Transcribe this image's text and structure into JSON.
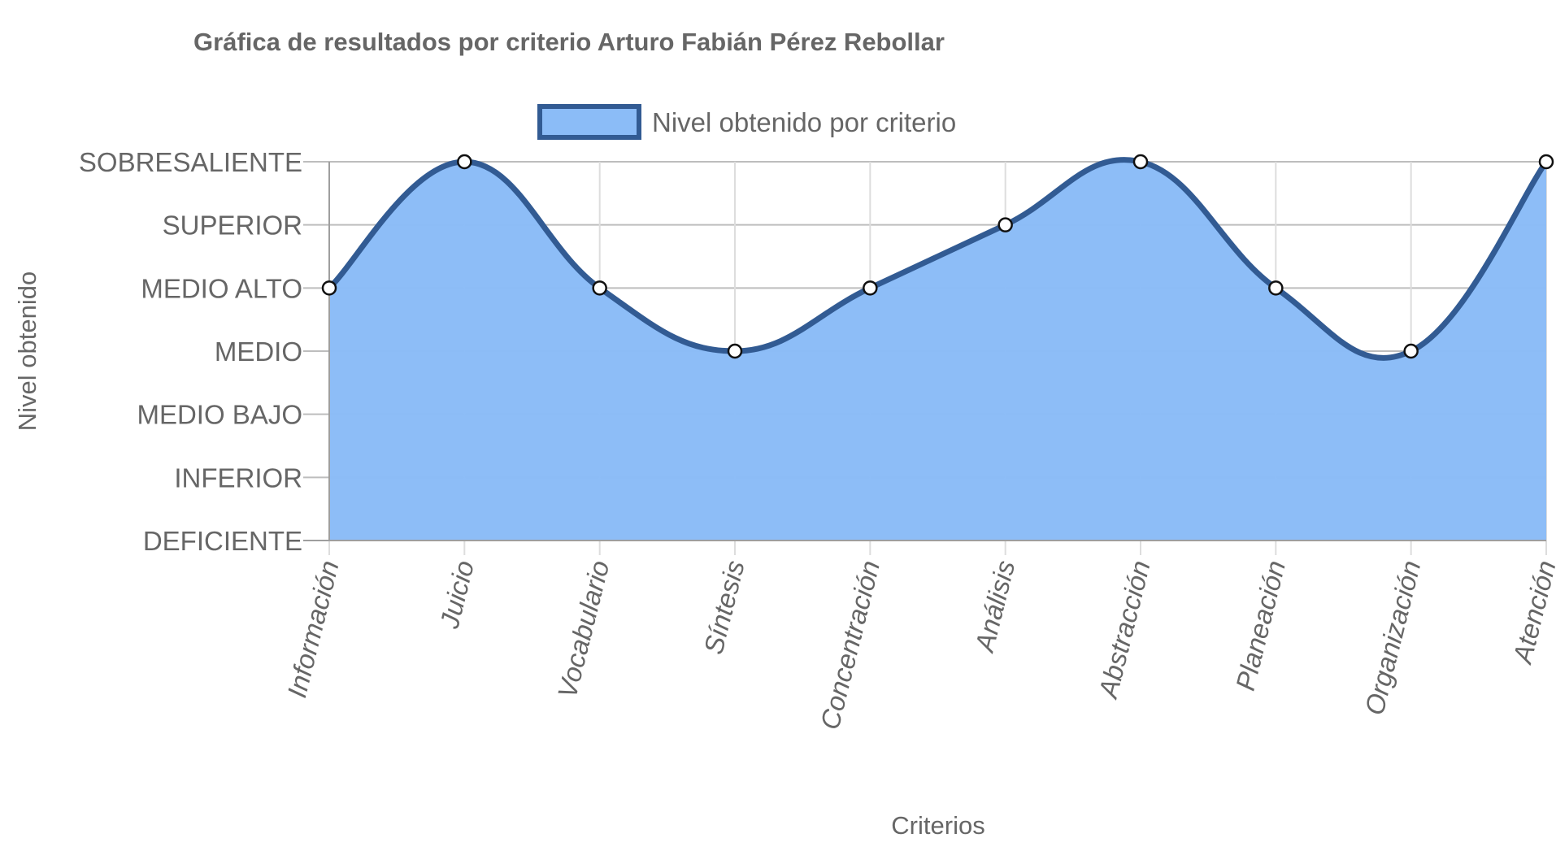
{
  "chart_data": {
    "type": "area",
    "title": "Gráfica de resultados por criterio Arturo Fabián Pérez Rebollar",
    "xlabel": "Criterios",
    "ylabel": "Nivel obtenido",
    "categories": [
      "Información",
      "Juicio",
      "Vocabulario",
      "Síntesis",
      "Concentración",
      "Análisis",
      "Abstracción",
      "Planeación",
      "Organización",
      "Atención"
    ],
    "y_levels": [
      "DEFICIENTE",
      "INFERIOR",
      "MEDIO BAJO",
      "MEDIO",
      "MEDIO ALTO",
      "SUPERIOR",
      "SOBRESALIENTE"
    ],
    "ylim": [
      0,
      6
    ],
    "grid": true,
    "legend_position": "top",
    "series": [
      {
        "name": "Nivel obtenido por criterio",
        "values": [
          4,
          6,
          4,
          3,
          4,
          5,
          6,
          4,
          3,
          6
        ],
        "fill_color": "#8bbcf7",
        "line_color": "#325b93"
      }
    ]
  }
}
